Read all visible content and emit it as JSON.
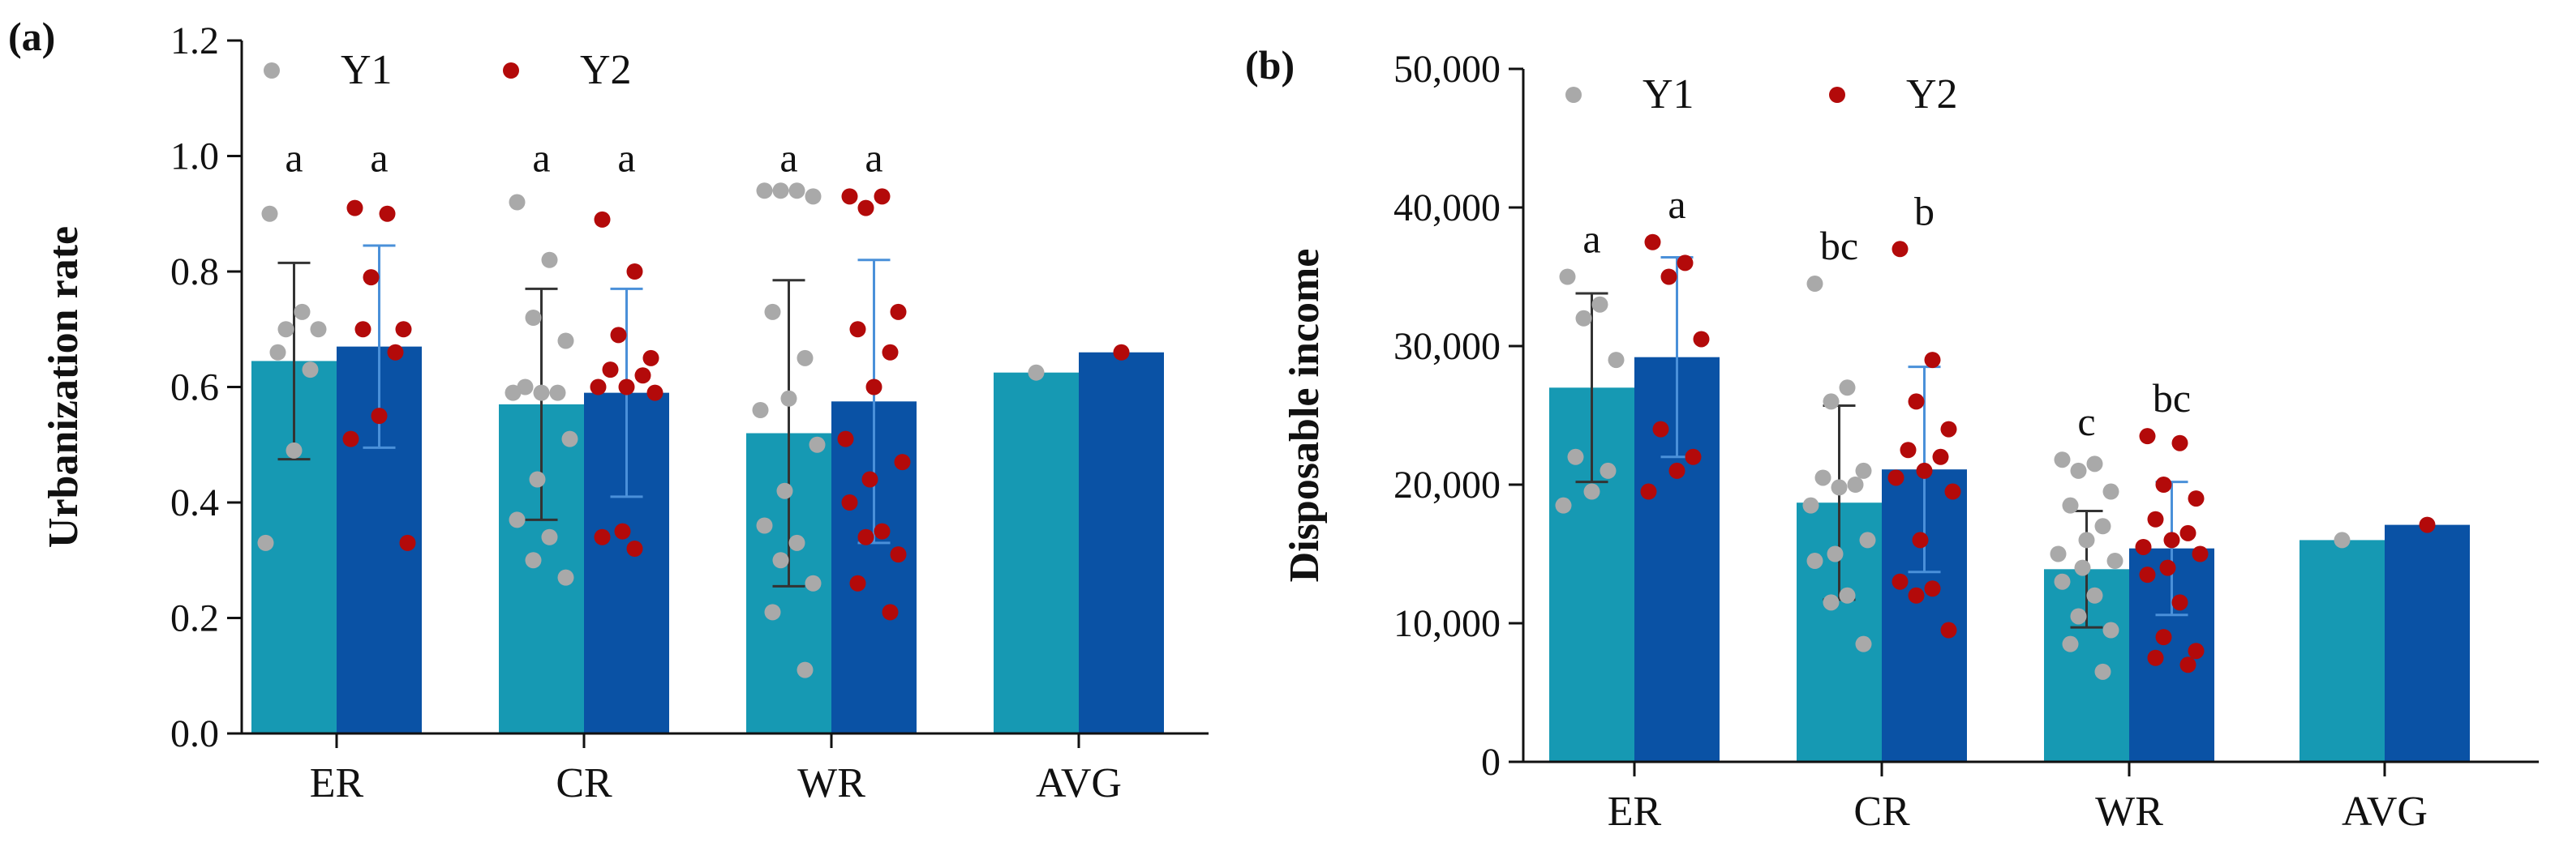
{
  "colors": {
    "y1_bar": "#1699b3",
    "y2_bar": "#0a52a5",
    "y1_dot": "#a9a9a9",
    "y2_dot": "#b30a0a",
    "y1_err": "#333333",
    "y2_err": "#4a90d9"
  },
  "chart_data": [
    {
      "type": "bar",
      "panel_label": "(a)",
      "title": "",
      "xlabel": "",
      "ylabel": "Urbanization rate",
      "ylim": [
        0,
        1.2
      ],
      "yticks": [
        0.0,
        0.2,
        0.4,
        0.6,
        0.8,
        1.0,
        1.2
      ],
      "ytick_labels": [
        "0.0",
        "0.2",
        "0.4",
        "0.6",
        "0.8",
        "1.0",
        "1.2"
      ],
      "categories": [
        "ER",
        "CR",
        "WR",
        "AVG"
      ],
      "legend": [
        "Y1",
        "Y2"
      ],
      "series": [
        {
          "name": "Y1",
          "values": [
            0.645,
            0.57,
            0.52,
            0.625
          ],
          "sd": [
            0.17,
            0.2,
            0.265,
            0
          ],
          "letters": [
            "a",
            "a",
            "a",
            ""
          ],
          "points": [
            [
              0.9,
              0.73,
              0.7,
              0.7,
              0.66,
              0.63,
              0.49,
              0.33
            ],
            [
              0.92,
              0.82,
              0.72,
              0.68,
              0.6,
              0.59,
              0.59,
              0.59,
              0.51,
              0.44,
              0.37,
              0.34,
              0.3,
              0.27
            ],
            [
              0.94,
              0.94,
              0.94,
              0.93,
              0.73,
              0.65,
              0.58,
              0.56,
              0.5,
              0.42,
              0.36,
              0.33,
              0.3,
              0.26,
              0.21,
              0.11
            ],
            [
              0.625
            ]
          ]
        },
        {
          "name": "Y2",
          "values": [
            0.67,
            0.59,
            0.575,
            0.66
          ],
          "sd": [
            0.175,
            0.18,
            0.245,
            0
          ],
          "letters": [
            "a",
            "a",
            "a",
            ""
          ],
          "points": [
            [
              0.91,
              0.9,
              0.79,
              0.7,
              0.7,
              0.66,
              0.55,
              0.51,
              0.33
            ],
            [
              0.89,
              0.8,
              0.69,
              0.65,
              0.63,
              0.62,
              0.6,
              0.6,
              0.59,
              0.35,
              0.34,
              0.32
            ],
            [
              0.93,
              0.93,
              0.91,
              0.73,
              0.7,
              0.66,
              0.6,
              0.51,
              0.47,
              0.44,
              0.4,
              0.35,
              0.34,
              0.31,
              0.26,
              0.21
            ],
            [
              0.66
            ]
          ]
        }
      ]
    },
    {
      "type": "bar",
      "panel_label": "(b)",
      "title": "",
      "xlabel": "",
      "ylabel": "Disposable income",
      "ylim": [
        0,
        50000
      ],
      "yticks": [
        0,
        10000,
        20000,
        30000,
        40000,
        50000
      ],
      "ytick_labels": [
        "0",
        "10,000",
        "20,000",
        "30,000",
        "40,000",
        "50,000"
      ],
      "categories": [
        "ER",
        "CR",
        "WR",
        "AVG"
      ],
      "legend": [
        "Y1",
        "Y2"
      ],
      "series": [
        {
          "name": "Y1",
          "values": [
            27000,
            18700,
            13900,
            16000
          ],
          "sd": [
            6800,
            7000,
            4200,
            0
          ],
          "letters": [
            "a",
            "bc",
            "c",
            ""
          ],
          "points": [
            [
              35000,
              33000,
              32000,
              29000,
              22000,
              21000,
              19500,
              18500
            ],
            [
              34500,
              27000,
              26000,
              21000,
              20500,
              20000,
              19800,
              18500,
              16000,
              15000,
              14500,
              12000,
              11500,
              8500
            ],
            [
              21800,
              21500,
              21000,
              19500,
              18500,
              17000,
              16000,
              15000,
              14500,
              14000,
              13000,
              12000,
              10500,
              9500,
              8500,
              6500
            ],
            [
              16000
            ]
          ]
        },
        {
          "name": "Y2",
          "values": [
            29200,
            21100,
            15400,
            17100
          ],
          "sd": [
            7200,
            7400,
            4800,
            0
          ],
          "letters": [
            "a",
            "b",
            "bc",
            ""
          ],
          "points": [
            [
              37500,
              36000,
              35000,
              30500,
              24000,
              22000,
              21000,
              19500
            ],
            [
              37000,
              29000,
              26000,
              24000,
              22500,
              22000,
              21000,
              20500,
              19500,
              16000,
              13000,
              12500,
              12000,
              9500
            ],
            [
              23500,
              23000,
              20000,
              19000,
              17500,
              16500,
              16000,
              15500,
              15000,
              14000,
              13500,
              11500,
              9000,
              8000,
              7500,
              7000
            ],
            [
              17100
            ]
          ]
        }
      ]
    }
  ]
}
